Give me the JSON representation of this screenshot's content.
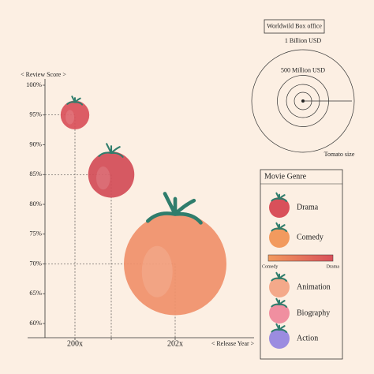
{
  "chart_data": {
    "type": "bubble",
    "y_label": "< Review Score >",
    "x_label": "< Release Year >",
    "categories": [
      "200x",
      null,
      "202x"
    ],
    "values": [
      95,
      85,
      70
    ],
    "sizes": [
      280,
      450,
      1000
    ],
    "colors": [
      "#d9505a",
      "#d24c57",
      "#f0906a"
    ],
    "ylim": [
      60,
      100
    ],
    "yticks": [
      {
        "value": 60,
        "label": "60%"
      },
      {
        "value": 65,
        "label": "65%"
      },
      {
        "value": 70,
        "label": "70%"
      },
      {
        "value": 75,
        "label": "75%"
      },
      {
        "value": 80,
        "label": "80%"
      },
      {
        "value": 85,
        "label": "85%"
      },
      {
        "value": 90,
        "label": "90%"
      },
      {
        "value": 95,
        "label": "95%"
      },
      {
        "value": 100,
        "label": "100%"
      }
    ],
    "size_legend": {
      "title": "Worldwild Box office",
      "ticks": [
        {
          "value": 1000,
          "label": "1 Billion USD"
        },
        {
          "value": 500,
          "label": "500 Million USD"
        }
      ],
      "note": "Tomato size"
    },
    "genre_legend": {
      "title": "Movie Genre",
      "items": [
        {
          "name": "Drama",
          "color": "#d9505a"
        },
        {
          "name": "Comedy",
          "color": "#f29a5e"
        },
        {
          "name": "Animation",
          "color": "#f4a98a"
        },
        {
          "name": "Biography",
          "color": "#f08fa0"
        },
        {
          "name": "Action",
          "color": "#9b8ce0"
        }
      ],
      "gradient_start": "Comedy",
      "gradient_end": "Drama"
    }
  }
}
